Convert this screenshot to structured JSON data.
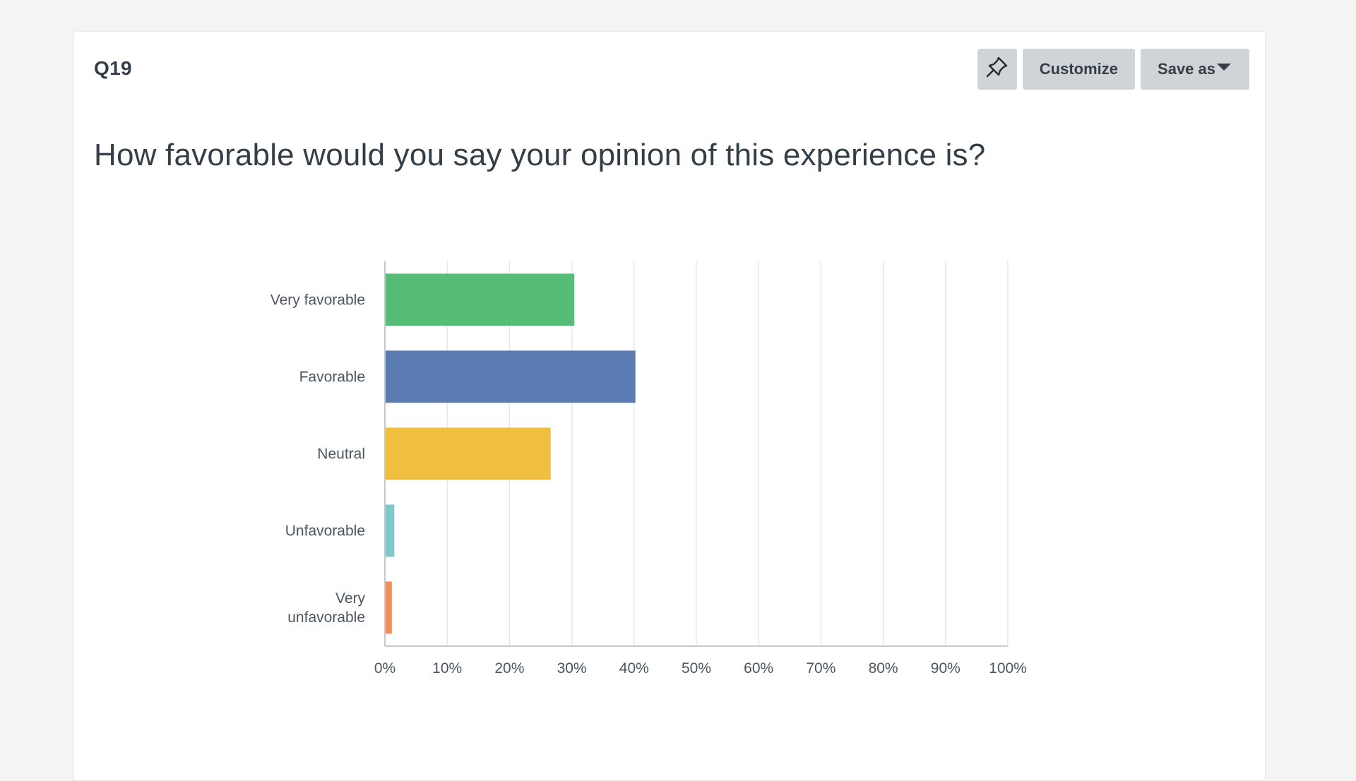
{
  "question": {
    "id": "Q19",
    "title": "How favorable would you say your opinion of this experience is?"
  },
  "toolbar": {
    "pin_icon": "pushpin-icon",
    "customize_label": "Customize",
    "save_as_label": "Save as",
    "caret_icon": "caret-down-icon"
  },
  "chart_data": {
    "type": "bar",
    "orientation": "horizontal",
    "categories": [
      "Very favorable",
      "Favorable",
      "Neutral",
      "Unfavorable",
      "Very unfavorable"
    ],
    "category_lines": [
      [
        "Very favorable"
      ],
      [
        "Favorable"
      ],
      [
        "Neutral"
      ],
      [
        "Unfavorable"
      ],
      [
        "Very",
        "unfavorable"
      ]
    ],
    "values": [
      30.3,
      40.1,
      26.5,
      1.4,
      1.0
    ],
    "colors": [
      "#57bd76",
      "#5a7bb2",
      "#f0bf40",
      "#7ec8cc",
      "#f08e5c"
    ],
    "xlim": [
      0,
      100
    ],
    "xticks": [
      "0%",
      "10%",
      "20%",
      "30%",
      "40%",
      "50%",
      "60%",
      "70%",
      "80%",
      "90%",
      "100%"
    ],
    "grid": true,
    "grid_color": "#e6e6e6",
    "axis_color": "#c9c9c9"
  }
}
